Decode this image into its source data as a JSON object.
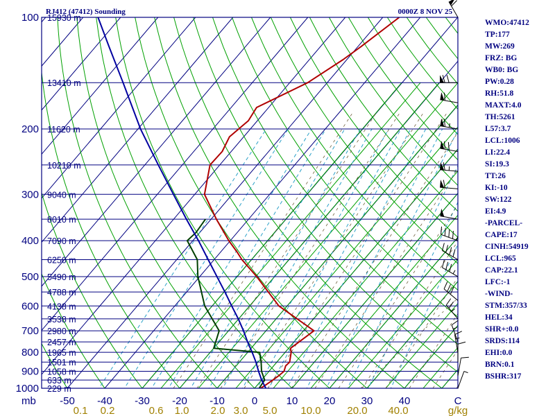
{
  "title": "RJ412 (47412) Sounding",
  "time": "0000Z  8 NOV 25",
  "sidebar": [
    "WMO:47412",
    "TP:177",
    "MW:269",
    "FRZ: BG",
    "WB0: BG",
    "PW:0.28",
    "RH:51.8",
    "MAXT:4.0",
    "TH:5261",
    "L57:3.7",
    "LCL:1006",
    "LI:22.4",
    "SI:19.3",
    "TT:26",
    "KI:-10",
    "SW:122",
    "EI:4.9",
    "-PARCEL-",
    "CAPE:17",
    "CINH:54919",
    "LCL:965",
    "CAP:22.1",
    "LFC:-1",
    "-WIND-",
    "STM:357/33",
    "HEL:34",
    "SHR+:0.0",
    "SRDS:114",
    "EHI:0.0",
    "BRN:0.1",
    "BSHR:317"
  ],
  "chart_data": {
    "type": "line",
    "subtype": "skew-t log-p sounding",
    "x_axis": {
      "unit_label": "C",
      "range": [
        -50,
        50
      ],
      "ticks": [
        -50,
        -40,
        -30,
        -20,
        -10,
        0,
        10,
        20,
        30,
        40
      ]
    },
    "y_axis": {
      "unit_label": "mb",
      "scale": "log",
      "range": [
        1000,
        100
      ],
      "ticks": [
        100,
        200,
        300,
        400,
        500,
        600,
        700,
        800,
        900,
        1000
      ]
    },
    "mixing_ratio_labels": {
      "unit_label": "g/kg",
      "values": [
        "0.1",
        "0.2",
        "0.6",
        "1.0",
        "2.0",
        "3.0",
        "5.0",
        "10.0",
        "20.0",
        "40.0"
      ]
    },
    "height_labels": [
      {
        "p": 100,
        "text": "15930 m"
      },
      {
        "p": 150,
        "text": "13410 m"
      },
      {
        "p": 200,
        "text": "11620 m"
      },
      {
        "p": 250,
        "text": "10210 m"
      },
      {
        "p": 300,
        "text": "9040 m"
      },
      {
        "p": 350,
        "text": "8010 m"
      },
      {
        "p": 400,
        "text": "7090 m"
      },
      {
        "p": 450,
        "text": "6250 m"
      },
      {
        "p": 500,
        "text": "5490 m"
      },
      {
        "p": 550,
        "text": "4788 m"
      },
      {
        "p": 600,
        "text": "4138 m"
      },
      {
        "p": 650,
        "text": "3538 m"
      },
      {
        "p": 700,
        "text": "2980 m"
      },
      {
        "p": 750,
        "text": "2457 m"
      },
      {
        "p": 800,
        "text": "1965 m"
      },
      {
        "p": 850,
        "text": "1501 m"
      },
      {
        "p": 900,
        "text": "1058 m"
      },
      {
        "p": 950,
        "text": "633 m"
      },
      {
        "p": 1000,
        "text": "229 m"
      }
    ],
    "series": [
      {
        "role": "temperature",
        "color": "#b00000",
        "p": [
          1012,
          1000,
          980,
          950,
          925,
          900,
          870,
          850,
          800,
          780,
          700,
          600,
          500,
          450,
          430,
          400,
          350,
          300,
          250,
          230,
          210,
          190,
          175,
          150,
          130,
          120,
          100
        ],
        "t": [
          1.4,
          1.6,
          2.2,
          3.0,
          3.6,
          4.0,
          3.2,
          3.4,
          1.6,
          0.5,
          2.8,
          -12.2,
          -24.8,
          -32.6,
          -35.5,
          -40.4,
          -48.6,
          -57.4,
          -62.6,
          -62.4,
          -63.8,
          -62.4,
          -63.2,
          -55.2,
          -51.0,
          -49.2,
          -45.6
        ]
      },
      {
        "role": "dewpoint",
        "color": "#004000",
        "p": [
          1012,
          1000,
          950,
          900,
          850,
          800,
          780,
          700,
          600,
          500,
          450,
          400,
          380,
          350
        ],
        "t": [
          1.0,
          1.2,
          0.8,
          -2.0,
          -4.2,
          -6.8,
          -20.0,
          -22.5,
          -32.0,
          -40.5,
          -44.5,
          -51.5,
          -51.0,
          -51.5
        ]
      },
      {
        "role": "parcel",
        "color": "#0000a0",
        "p": [
          1012,
          1000,
          950,
          900,
          850,
          800,
          750,
          700,
          650,
          600,
          550,
          500,
          450,
          400,
          350,
          300,
          250,
          200,
          150,
          120,
          100
        ],
        "t": [
          3.2,
          3.0,
          0.0,
          -2.8,
          -5.6,
          -8.8,
          -12.4,
          -16.0,
          -20.1,
          -24.8,
          -29.8,
          -35.4,
          -41.6,
          -48.5,
          -56.6,
          -65.7,
          -76.4,
          -89.3,
          -104.5,
          -116.4,
          -126.0
        ]
      }
    ],
    "wind_barbs": [
      {
        "p": 100,
        "dir": 330,
        "spd": 60
      },
      {
        "p": 150,
        "dir": 270,
        "spd": 70
      },
      {
        "p": 170,
        "dir": 280,
        "spd": 60
      },
      {
        "p": 200,
        "dir": 280,
        "spd": 65
      },
      {
        "p": 230,
        "dir": 280,
        "spd": 70
      },
      {
        "p": 260,
        "dir": 275,
        "spd": 65
      },
      {
        "p": 290,
        "dir": 275,
        "spd": 60
      },
      {
        "p": 350,
        "dir": 280,
        "spd": 50
      },
      {
        "p": 400,
        "dir": 290,
        "spd": 45
      },
      {
        "p": 450,
        "dir": 300,
        "spd": 40
      },
      {
        "p": 500,
        "dir": 300,
        "spd": 35
      },
      {
        "p": 580,
        "dir": 310,
        "spd": 30
      },
      {
        "p": 650,
        "dir": 320,
        "spd": 25
      },
      {
        "p": 750,
        "dir": 340,
        "spd": 15
      },
      {
        "p": 800,
        "dir": 350,
        "spd": 15
      },
      {
        "p": 850,
        "dir": 0,
        "spd": 10
      },
      {
        "p": 925,
        "dir": 10,
        "spd": 10
      },
      {
        "p": 1000,
        "dir": 20,
        "spd": 5
      }
    ],
    "grid": true
  }
}
